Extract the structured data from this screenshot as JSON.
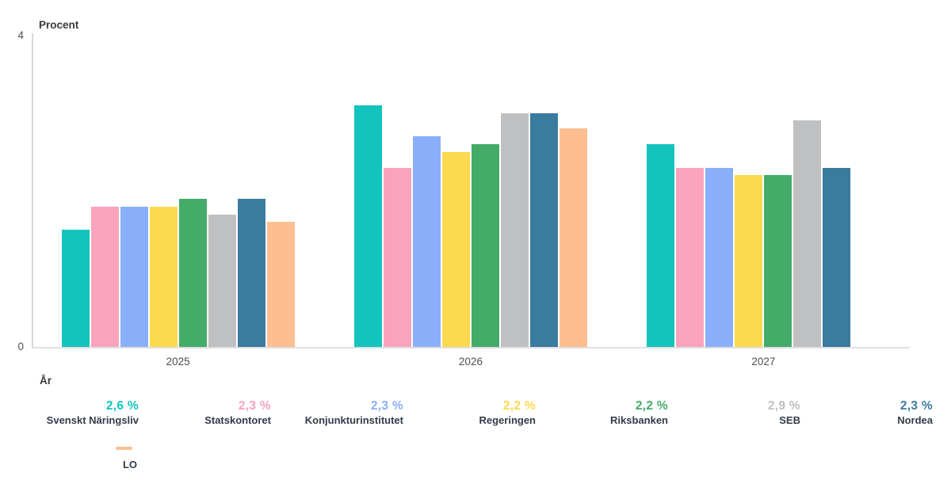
{
  "chart": {
    "y_tick_top": "4",
    "y_tick_bottom": "0",
    "colors": {
      "axis_line": "#d8d8d8",
      "tick_text": "#4e4e4e",
      "label_text": "#333b49"
    }
  },
  "chart_data": {
    "type": "bar",
    "title": "",
    "ylabel": "Procent",
    "xlabel": "År",
    "ylim": [
      0,
      4
    ],
    "y_ticks_shown": [
      0,
      4
    ],
    "grid": false,
    "legend_position": "bottom",
    "categories": [
      "2025",
      "2026",
      "2027"
    ],
    "series": [
      {
        "name": "Svenskt Näringsliv",
        "color": "#12c4bd",
        "values": [
          1.5,
          3.1,
          2.6
        ],
        "legend_value": "2,6 %"
      },
      {
        "name": "Statskontoret",
        "color": "#fba3bd",
        "values": [
          1.8,
          2.3,
          2.3
        ],
        "legend_value": "2,3 %"
      },
      {
        "name": "Konjunkturinstitutet",
        "color": "#8aaffa",
        "values": [
          1.8,
          2.7,
          2.3
        ],
        "legend_value": "2,3 %"
      },
      {
        "name": "Regeringen",
        "color": "#fcd94f",
        "values": [
          1.8,
          2.5,
          2.2
        ],
        "legend_value": "2,2 %"
      },
      {
        "name": "Riksbanken",
        "color": "#44ac68",
        "values": [
          1.9,
          2.6,
          2.2
        ],
        "legend_value": "2,2 %"
      },
      {
        "name": "SEB",
        "color": "#bfc0c1",
        "values": [
          1.7,
          3.0,
          2.9
        ],
        "legend_value": "2,9 %"
      },
      {
        "name": "Nordea",
        "color": "#3c7ba0",
        "values": [
          1.9,
          3.0,
          2.3
        ],
        "legend_value": "2,3 %"
      },
      {
        "name": "LO",
        "color": "#fdbf92",
        "values": [
          1.6,
          2.8,
          null
        ],
        "legend_value": null
      }
    ]
  }
}
